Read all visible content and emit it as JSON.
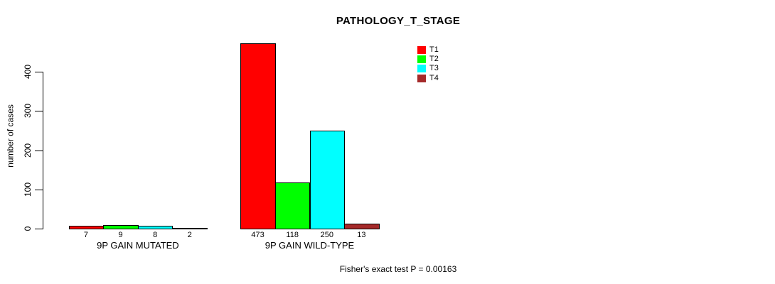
{
  "chart_data": {
    "type": "bar",
    "title": "PATHOLOGY_T_STAGE",
    "ylabel": "number of cases",
    "xlabel": "",
    "footer": "Fisher's exact test P = 0.00163",
    "ylim": [
      0,
      400
    ],
    "yticks": [
      0,
      100,
      200,
      300,
      400
    ],
    "grid": false,
    "legend_position": "top-right",
    "categories": [
      "9P GAIN MUTATED",
      "9P GAIN WILD-TYPE"
    ],
    "series": [
      {
        "name": "T1",
        "color": "#FF0000",
        "values": [
          7,
          473
        ]
      },
      {
        "name": "T2",
        "color": "#00FF00",
        "values": [
          9,
          118
        ]
      },
      {
        "name": "T3",
        "color": "#00FFFF",
        "values": [
          8,
          250
        ]
      },
      {
        "name": "T4",
        "color": "#A52A2A",
        "values": [
          2,
          13
        ]
      }
    ]
  }
}
